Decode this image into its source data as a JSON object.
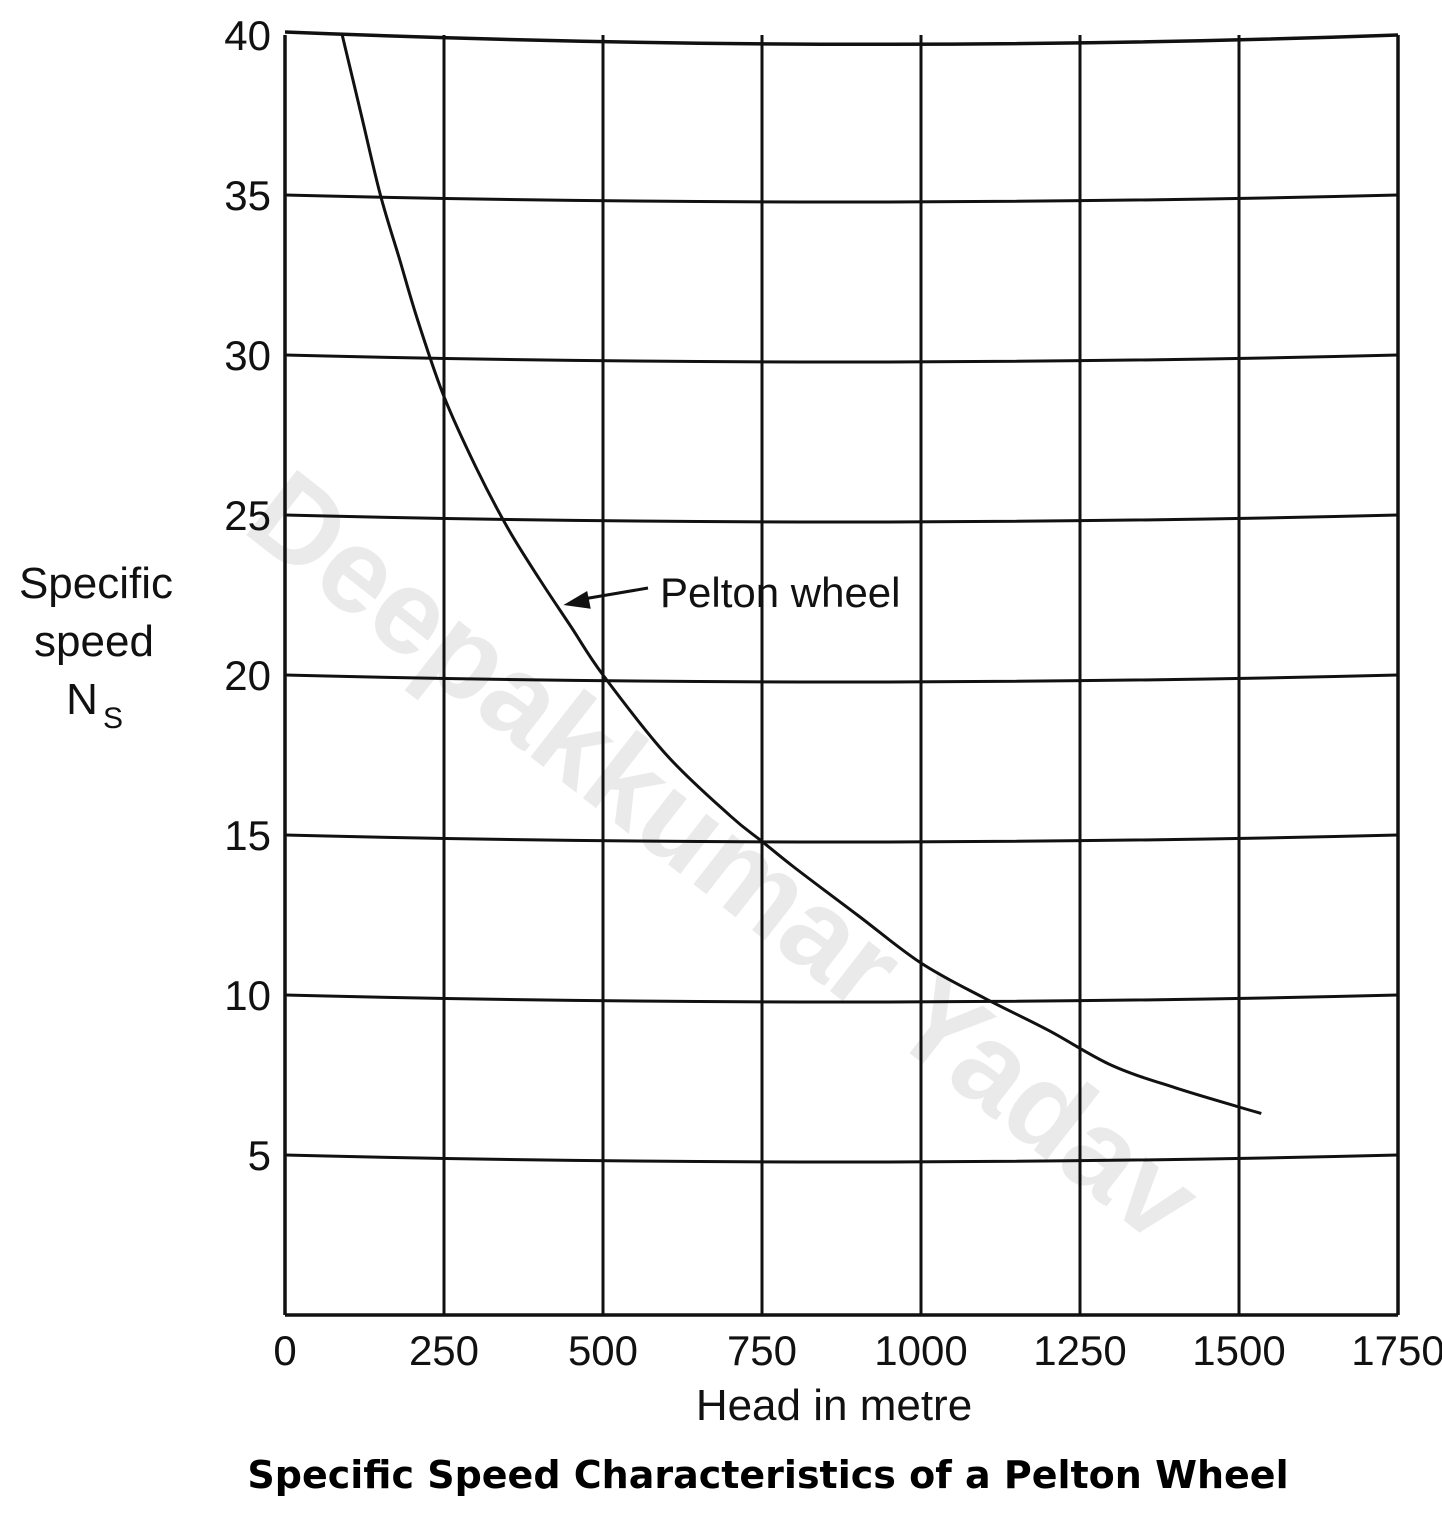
{
  "chart_data": {
    "type": "line",
    "title": "Specific Speed Characteristics of a Pelton Wheel",
    "xlabel": "Head in metre",
    "ylabel_lines": [
      "Specific",
      "speed"
    ],
    "ylabel_symbol": "N",
    "ylabel_subscript": "S",
    "xlim": [
      0,
      1750
    ],
    "ylim": [
      0,
      40
    ],
    "grid": true,
    "x_ticks": [
      "0",
      "250",
      "500",
      "750",
      "1000",
      "1250",
      "1500",
      "1750"
    ],
    "y_ticks": [
      "5",
      "10",
      "15",
      "20",
      "25",
      "30",
      "35",
      "40"
    ],
    "series": [
      {
        "name": "Pelton wheel",
        "x": [
          90,
          120,
          150,
          180,
          210,
          250,
          300,
          350,
          400,
          450,
          500,
          600,
          700,
          750,
          800,
          900,
          1000,
          1100,
          1200,
          1300,
          1400,
          1500,
          1535
        ],
        "y": [
          40,
          37.5,
          35,
          33,
          31,
          28.7,
          26.5,
          24.6,
          23,
          21.5,
          20,
          17.5,
          15.6,
          14.8,
          14,
          12.5,
          11,
          9.9,
          8.9,
          7.8,
          7.1,
          6.5,
          6.3
        ]
      }
    ],
    "annotations": [
      {
        "text": "Pelton wheel",
        "points_to": {
          "x": 430,
          "y": 22
        }
      }
    ]
  },
  "watermark": "Deepakkumar Yadav",
  "colors": {
    "ink": "#111111",
    "watermark": "#d9d9d9",
    "background": "#ffffff"
  }
}
